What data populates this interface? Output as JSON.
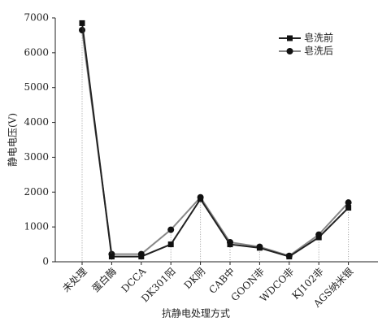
{
  "chart_data": {
    "type": "line",
    "x_label": "抗静电处理方式",
    "y_label": "静电电压(V)",
    "categories": [
      "未处理",
      "蛋白酶",
      "DCCA",
      "DK301阳",
      "DK阴",
      "CAB中",
      "GOON非",
      "WDCO非",
      "KJ102非",
      "AGS纳米银"
    ],
    "series": [
      {
        "name": "皂洗前",
        "color": "#222222",
        "marker": "square",
        "values": [
          6850,
          150,
          150,
          500,
          1800,
          500,
          400,
          150,
          700,
          1550
        ]
      },
      {
        "name": "皂洗后",
        "color": "#888888",
        "marker": "circle",
        "values": [
          6650,
          220,
          220,
          920,
          1850,
          560,
          430,
          170,
          780,
          1700
        ]
      }
    ],
    "ylim": [
      0,
      7000
    ],
    "yticks": [
      0,
      1000,
      2000,
      3000,
      4000,
      5000,
      6000,
      7000
    ],
    "legend": "upper right",
    "drop_lines": true
  }
}
